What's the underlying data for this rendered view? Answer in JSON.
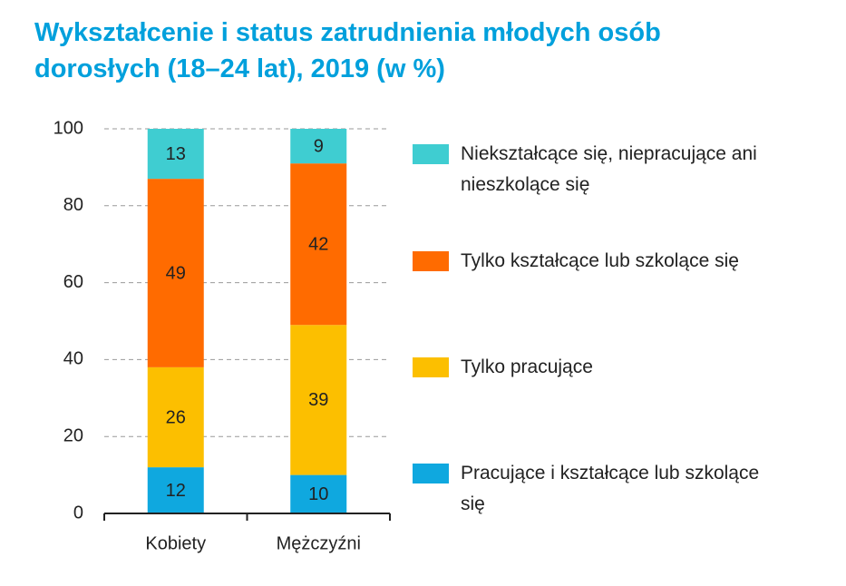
{
  "chart_data": {
    "type": "stacked_bar",
    "title": "Wykształcenie i status zatrudnienia młodych osób dorosłych (18–24 lat), 2019 (w %)",
    "categories": [
      "Kobiety",
      "Mężczyźni"
    ],
    "series": [
      {
        "name": "Pracujące i kształcące lub szkolące się",
        "color": "#0fa8df",
        "values": [
          12,
          10
        ]
      },
      {
        "name": "Tylko pracujące",
        "color": "#fcbf00",
        "values": [
          26,
          39
        ]
      },
      {
        "name": "Tylko kształcące lub szkolące się",
        "color": "#ff6b00",
        "values": [
          49,
          42
        ]
      },
      {
        "name": "Niekształcące się, niepracujące ani nieszkolące się",
        "color": "#3fcdd1",
        "values": [
          13,
          9
        ]
      }
    ],
    "ylim": [
      0,
      100
    ],
    "yticks": [
      0,
      20,
      40,
      60,
      80,
      100
    ],
    "grid": true
  }
}
